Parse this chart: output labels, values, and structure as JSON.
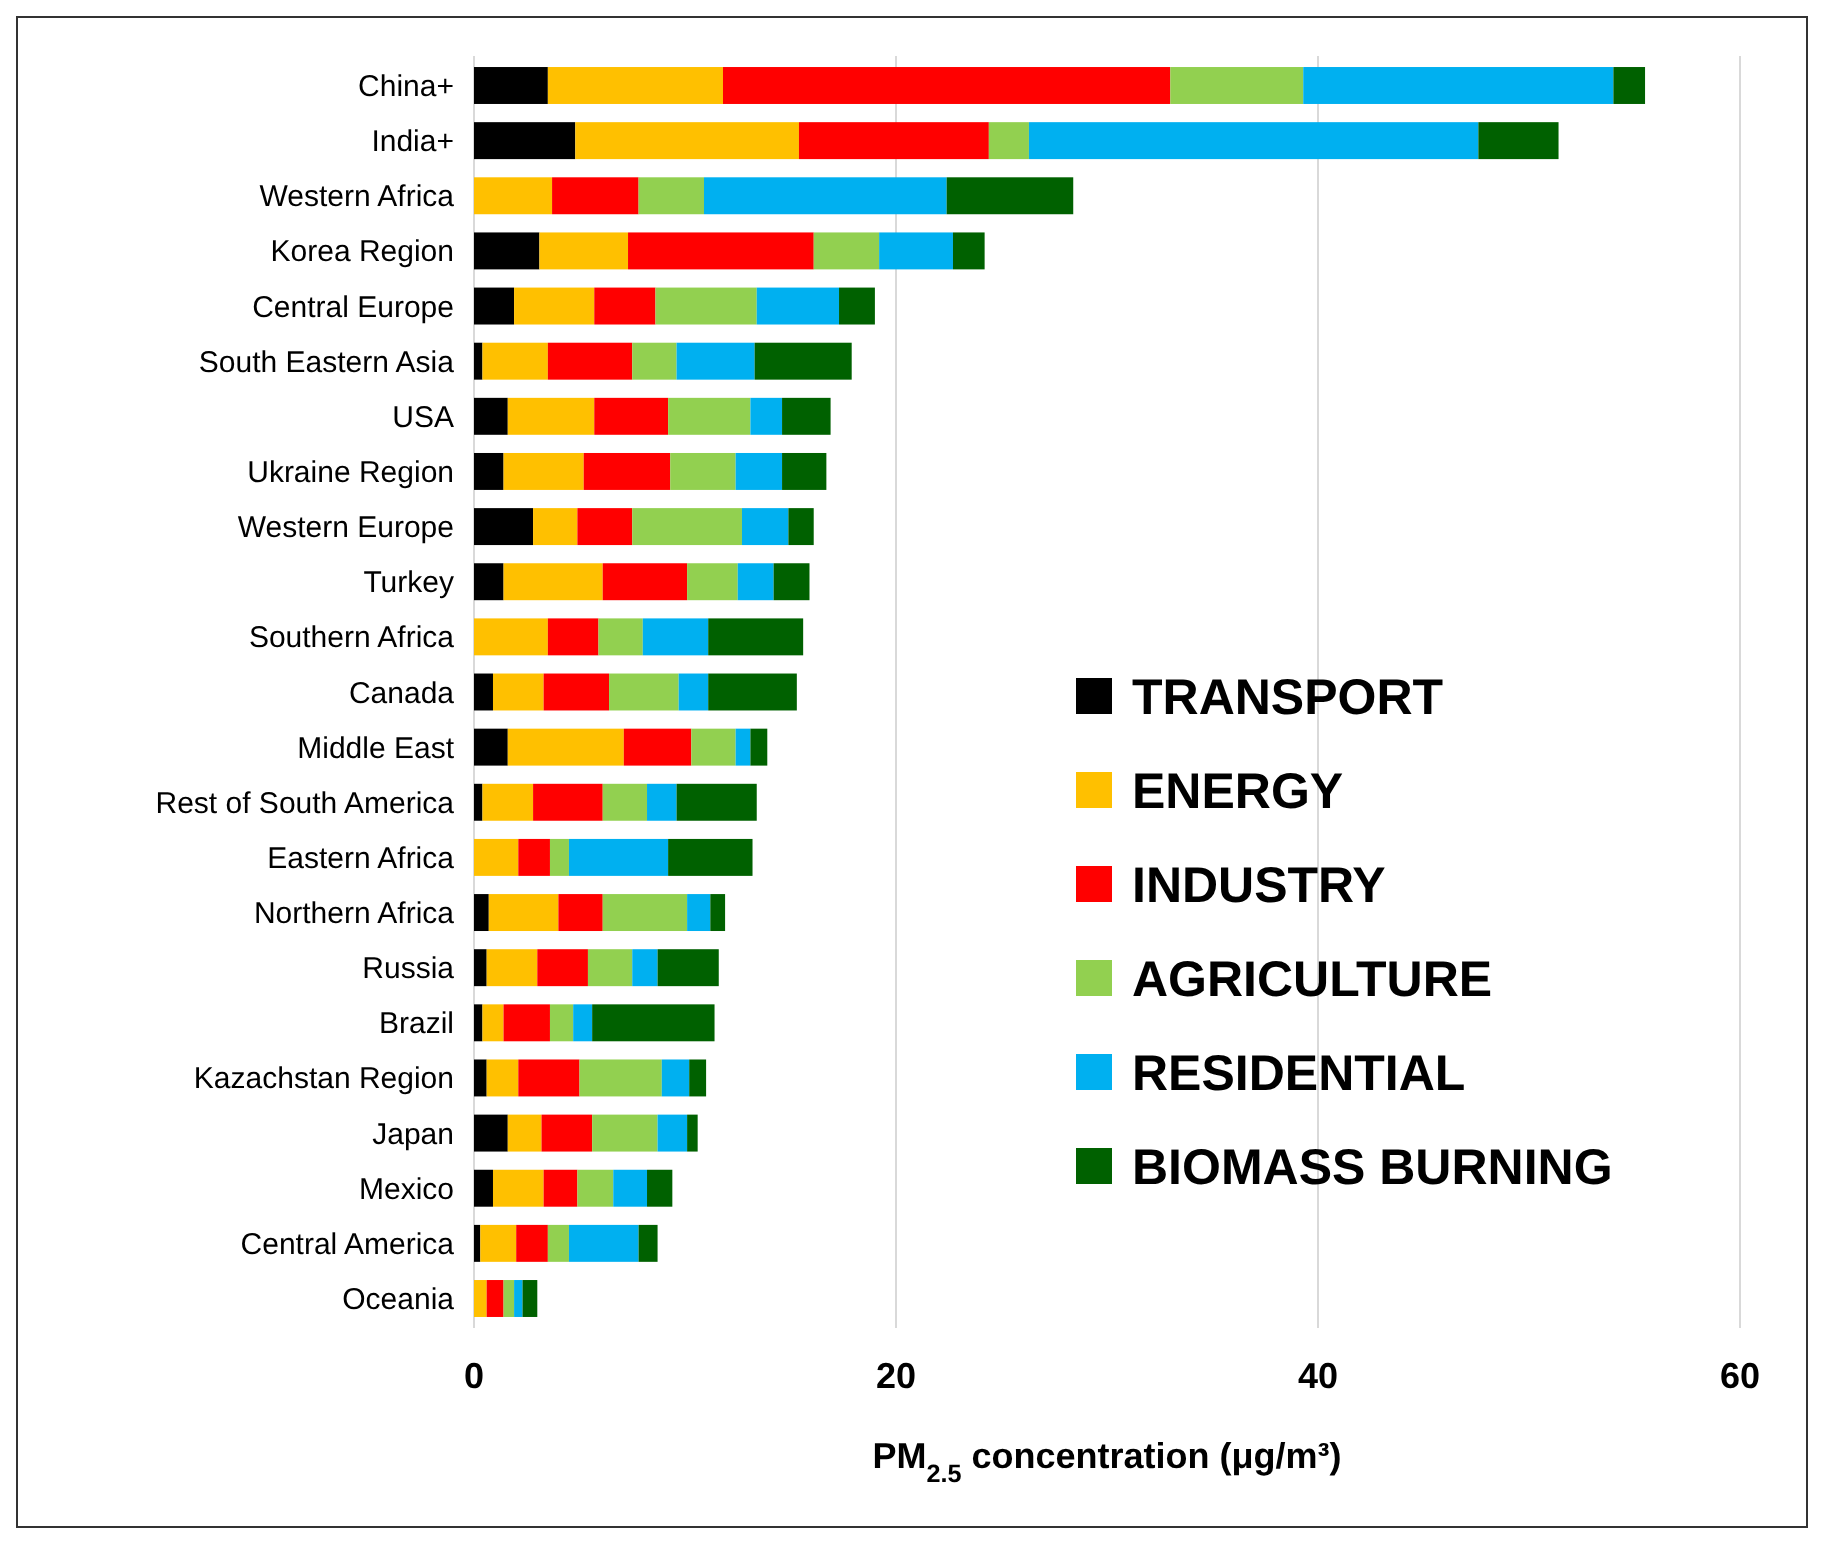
{
  "chart_data": {
    "type": "bar",
    "orientation": "horizontal",
    "stacked": true,
    "xlabel": "PM$_{2.5}$ concentration (μg/m³)",
    "categories": [
      "China+",
      "India+",
      "Western Africa",
      "Korea Region",
      "Central Europe",
      "South Eastern Asia",
      "USA",
      "Ukraine Region",
      "Western Europe",
      "Turkey",
      "Southern Africa",
      "Canada",
      "Middle East",
      "Rest of South America",
      "Eastern Africa",
      "Northern Africa",
      "Russia",
      "Brazil",
      "Kazachstan Region",
      "Japan",
      "Mexico",
      "Central America",
      "Oceania"
    ],
    "series": [
      {
        "name": "TRANSPORT",
        "color": "#000000",
        "values": [
          3.5,
          4.8,
          0,
          3.1,
          1.9,
          0.4,
          1.6,
          1.4,
          2.8,
          1.4,
          0,
          0.9,
          1.6,
          0.4,
          0,
          0.7,
          0.6,
          0.4,
          0.6,
          1.6,
          0.9,
          0.3,
          0
        ]
      },
      {
        "name": "ENERGY",
        "color": "#ffc000",
        "values": [
          8.3,
          10.6,
          3.7,
          4.2,
          3.8,
          3.1,
          4.1,
          3.8,
          2.1,
          4.7,
          3.5,
          2.4,
          5.5,
          2.4,
          2.1,
          3.3,
          2.4,
          1.0,
          1.5,
          1.6,
          2.4,
          1.7,
          0.6
        ]
      },
      {
        "name": "INDUSTRY",
        "color": "#ff0000",
        "values": [
          21.2,
          9.0,
          4.1,
          8.8,
          2.9,
          4.0,
          3.5,
          4.1,
          2.6,
          4.0,
          2.4,
          3.1,
          3.2,
          3.3,
          1.5,
          2.1,
          2.4,
          2.2,
          2.9,
          2.4,
          1.6,
          1.5,
          0.8
        ]
      },
      {
        "name": "AGRICULTURE",
        "color": "#92d050",
        "values": [
          6.3,
          1.9,
          3.1,
          3.1,
          4.8,
          2.1,
          3.9,
          3.1,
          5.2,
          2.4,
          2.1,
          3.3,
          2.1,
          2.1,
          0.9,
          4.0,
          2.1,
          1.1,
          3.9,
          3.1,
          1.7,
          1.0,
          0.5
        ]
      },
      {
        "name": "RESIDENTIAL",
        "color": "#00b0f0",
        "values": [
          14.7,
          21.3,
          11.5,
          3.5,
          3.9,
          3.7,
          1.5,
          2.2,
          2.2,
          1.7,
          3.1,
          1.4,
          0.7,
          1.4,
          4.7,
          1.1,
          1.2,
          0.9,
          1.3,
          1.4,
          1.6,
          3.3,
          0.4
        ]
      },
      {
        "name": "BIOMASS BURNING",
        "color": "#006100",
        "values": [
          1.5,
          3.8,
          6.0,
          1.5,
          1.7,
          4.6,
          2.3,
          2.1,
          1.2,
          1.7,
          4.5,
          4.2,
          0.8,
          3.8,
          4.0,
          0.7,
          2.9,
          5.8,
          0.8,
          0.5,
          1.2,
          0.9,
          0.7
        ]
      }
    ],
    "xlim": [
      0,
      60
    ],
    "xticks": [
      0,
      20,
      40,
      60
    ],
    "grid": "x",
    "legend": "right"
  }
}
